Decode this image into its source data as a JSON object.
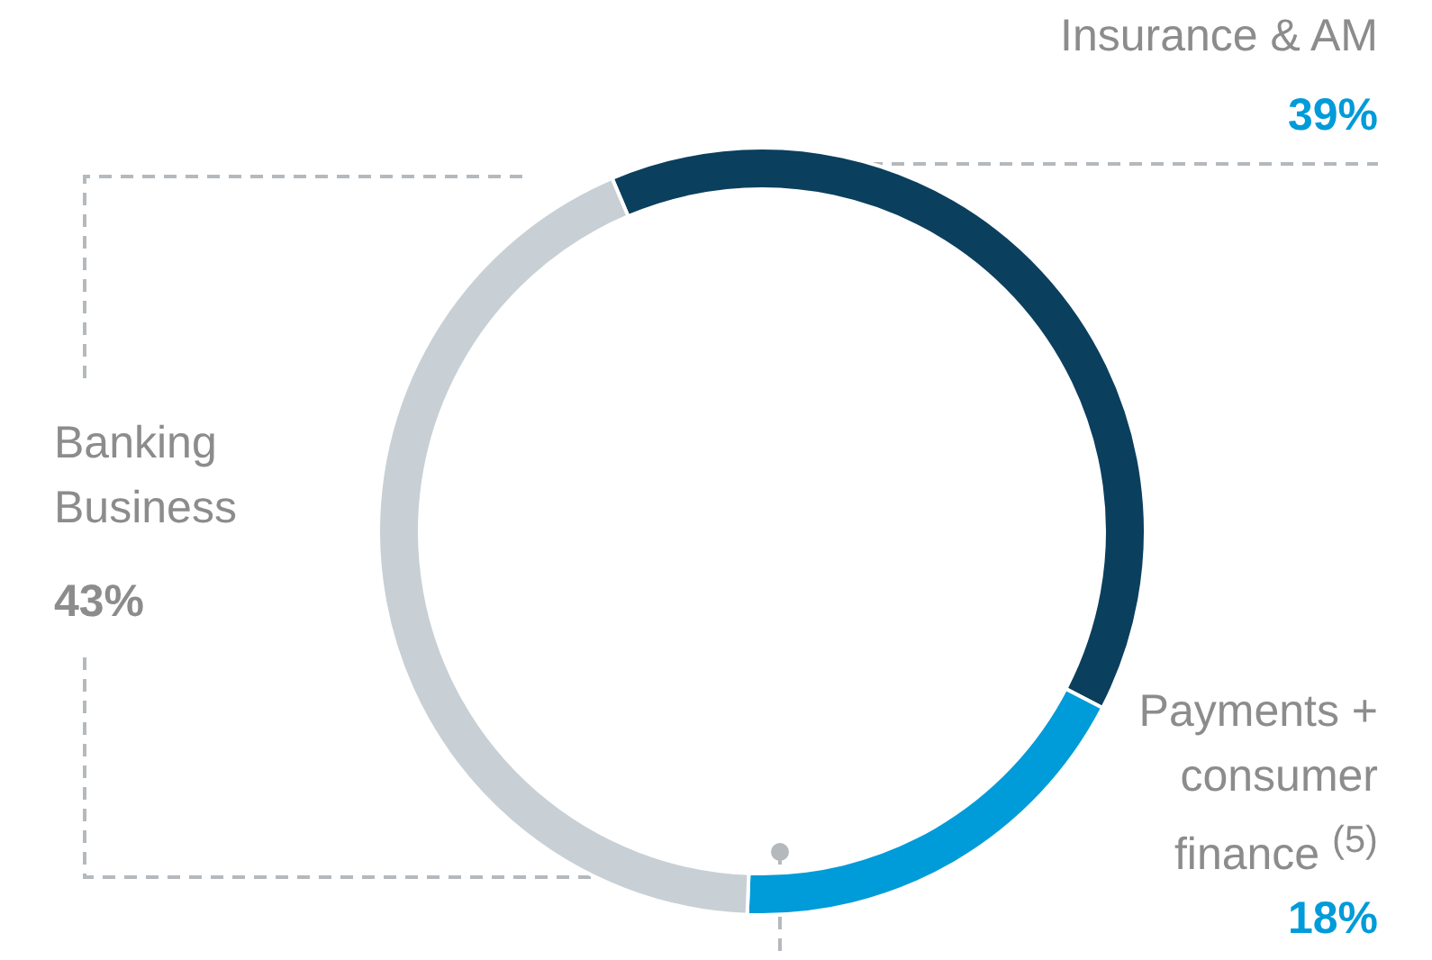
{
  "chart_data": {
    "type": "donut",
    "categories": [
      "Insurance & AM",
      "Payments + consumer finance $^{(5)}$",
      "Banking Business"
    ],
    "values": [
      39,
      18,
      43
    ],
    "colors": [
      "#0b3f5e",
      "#009bd9",
      "#c8d0d5"
    ],
    "value_labels": [
      "39%",
      "18%",
      "43%"
    ]
  }
}
